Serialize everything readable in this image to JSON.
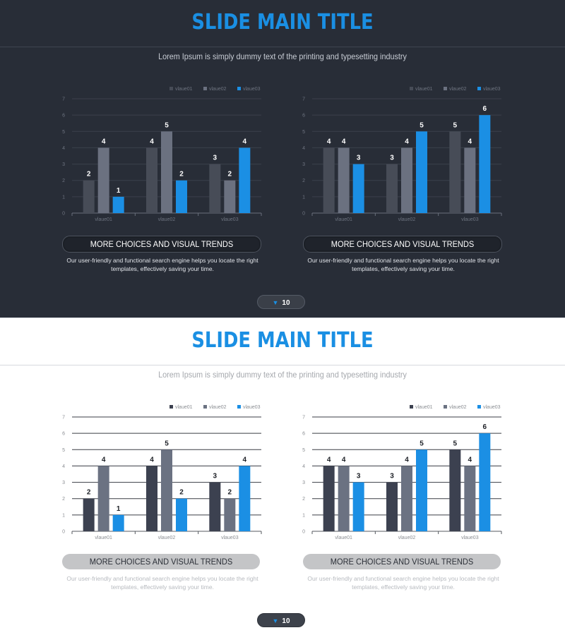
{
  "colors": {
    "accent": "#1a8fe3",
    "dark_bg": "#282d37",
    "series_dark": [
      "#474c57",
      "#6b7180",
      "#1b8fe4"
    ],
    "series_light": [
      "#3c4150",
      "#6b7282",
      "#1b8fe4"
    ]
  },
  "slides": [
    {
      "theme": "dark",
      "title": "SLIDE MAIN TITLE",
      "subtitle": "Lorem Ipsum is simply dummy text of the printing and typesetting industry",
      "blocks": [
        {
          "pill_label": "MORE CHOICES AND VISUAL TRENDS",
          "desc_line1": "Our user-friendly and functional search engine helps you locate the right",
          "desc_line2": "templates, effectively saving your time."
        },
        {
          "pill_label": "MORE CHOICES AND VISUAL TRENDS",
          "desc_line1": "Our user-friendly and functional search engine helps you locate the right",
          "desc_line2": "templates, effectively saving your time."
        }
      ],
      "page_number": "10",
      "page_icon": "triangle-down-icon"
    },
    {
      "theme": "light",
      "title": "SLIDE MAIN TITLE",
      "subtitle": "Lorem Ipsum is simply dummy text of the printing and typesetting industry",
      "blocks": [
        {
          "pill_label": "MORE CHOICES AND VISUAL TRENDS",
          "desc_line1": "Our user-friendly and functional search engine helps you locate the right",
          "desc_line2": "templates, effectively saving your time."
        },
        {
          "pill_label": "MORE CHOICES AND VISUAL TRENDS",
          "desc_line1": "Our user-friendly and functional search engine helps you locate the right",
          "desc_line2": "templates, effectively saving your time."
        }
      ],
      "page_number": "10",
      "page_icon": "triangle-down-icon"
    }
  ],
  "chart_data": [
    {
      "type": "bar",
      "slide": "dark",
      "position": "left",
      "categories": [
        "vlaue01",
        "vlaue02",
        "vlaue03"
      ],
      "series": [
        {
          "name": "vlaue01",
          "values": [
            2,
            4,
            3
          ]
        },
        {
          "name": "vlaue02",
          "values": [
            4,
            5,
            2
          ]
        },
        {
          "name": "vlaue03",
          "values": [
            1,
            2,
            4
          ]
        }
      ],
      "ylim": [
        0,
        7
      ],
      "yticks": [
        0,
        1,
        2,
        3,
        4,
        5,
        6,
        7
      ],
      "legend": "top-right",
      "grid": true,
      "data_labels": true
    },
    {
      "type": "bar",
      "slide": "dark",
      "position": "right",
      "categories": [
        "vlaue01",
        "vlaue02",
        "vlaue03"
      ],
      "series": [
        {
          "name": "vlaue01",
          "values": [
            4,
            3,
            5
          ]
        },
        {
          "name": "vlaue02",
          "values": [
            4,
            4,
            4
          ]
        },
        {
          "name": "vlaue03",
          "values": [
            3,
            5,
            6
          ]
        }
      ],
      "ylim": [
        0,
        7
      ],
      "yticks": [
        0,
        1,
        2,
        3,
        4,
        5,
        6,
        7
      ],
      "legend": "top-right",
      "grid": true,
      "data_labels": true
    },
    {
      "type": "bar",
      "slide": "light",
      "position": "left",
      "categories": [
        "vlaue01",
        "vlaue02",
        "vlaue03"
      ],
      "series": [
        {
          "name": "vlaue01",
          "values": [
            2,
            4,
            3
          ]
        },
        {
          "name": "vlaue02",
          "values": [
            4,
            5,
            2
          ]
        },
        {
          "name": "vlaue03",
          "values": [
            1,
            2,
            4
          ]
        }
      ],
      "ylim": [
        0,
        7
      ],
      "yticks": [
        0,
        1,
        2,
        3,
        4,
        5,
        6,
        7
      ],
      "legend": "top-right",
      "grid": true,
      "data_labels": true
    },
    {
      "type": "bar",
      "slide": "light",
      "position": "right",
      "categories": [
        "vlaue01",
        "vlaue02",
        "vlaue03"
      ],
      "series": [
        {
          "name": "vlaue01",
          "values": [
            4,
            3,
            5
          ]
        },
        {
          "name": "vlaue02",
          "values": [
            4,
            4,
            4
          ]
        },
        {
          "name": "vlaue03",
          "values": [
            3,
            5,
            6
          ]
        }
      ],
      "ylim": [
        0,
        7
      ],
      "yticks": [
        0,
        1,
        2,
        3,
        4,
        5,
        6,
        7
      ],
      "legend": "top-right",
      "grid": true,
      "data_labels": true
    }
  ]
}
